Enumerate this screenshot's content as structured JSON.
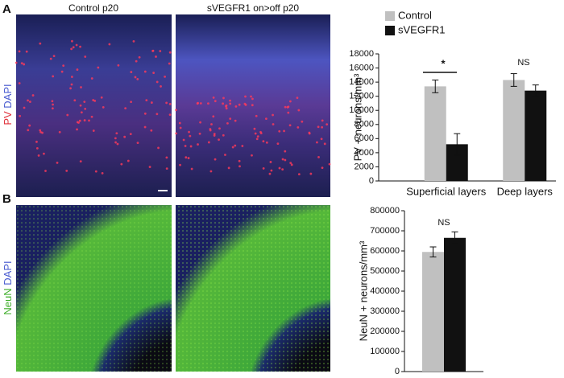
{
  "panels": [
    {
      "label": "A",
      "stain": [
        "PV",
        "DAPI"
      ],
      "stain_colors": [
        "#e0303a",
        "#4a5cd0"
      ]
    },
    {
      "label": "B",
      "stain": [
        "NeuN",
        "DAPI"
      ],
      "stain_colors": [
        "#3fae2a",
        "#4a5cd0"
      ]
    }
  ],
  "column_titles": [
    "Control p20",
    "sVEGFR1 on>off p20"
  ],
  "chart_data": [
    {
      "type": "bar",
      "ylabel": "PV + neurons/mm³",
      "categories": [
        "Superficial layers",
        "Deep layers"
      ],
      "series": [
        {
          "name": "Control",
          "color": "#c0c0c0",
          "values": [
            13400,
            14300
          ],
          "errors": [
            900,
            900
          ]
        },
        {
          "name": "sVEGFR1",
          "color": "#111111",
          "values": [
            5200,
            12800
          ],
          "errors": [
            1500,
            800
          ]
        }
      ],
      "ylim": [
        0,
        18000
      ],
      "yticks": [
        0,
        2000,
        4000,
        6000,
        8000,
        10000,
        12000,
        14000,
        16000,
        18000
      ],
      "annotations": [
        "*",
        "NS"
      ]
    },
    {
      "type": "bar",
      "ylabel": "NeuN + neurons/mm³",
      "categories": [
        null
      ],
      "series": [
        {
          "color": "#c0c0c0",
          "values": [
            595000
          ],
          "errors": [
            25000
          ]
        },
        {
          "color": "#111111",
          "values": [
            665000
          ],
          "errors": [
            30000
          ]
        }
      ],
      "ylim": [
        0,
        800000
      ],
      "yticks": [
        0,
        100000,
        200000,
        300000,
        400000,
        500000,
        600000,
        700000,
        800000
      ],
      "annotations": [
        "NS"
      ]
    }
  ]
}
